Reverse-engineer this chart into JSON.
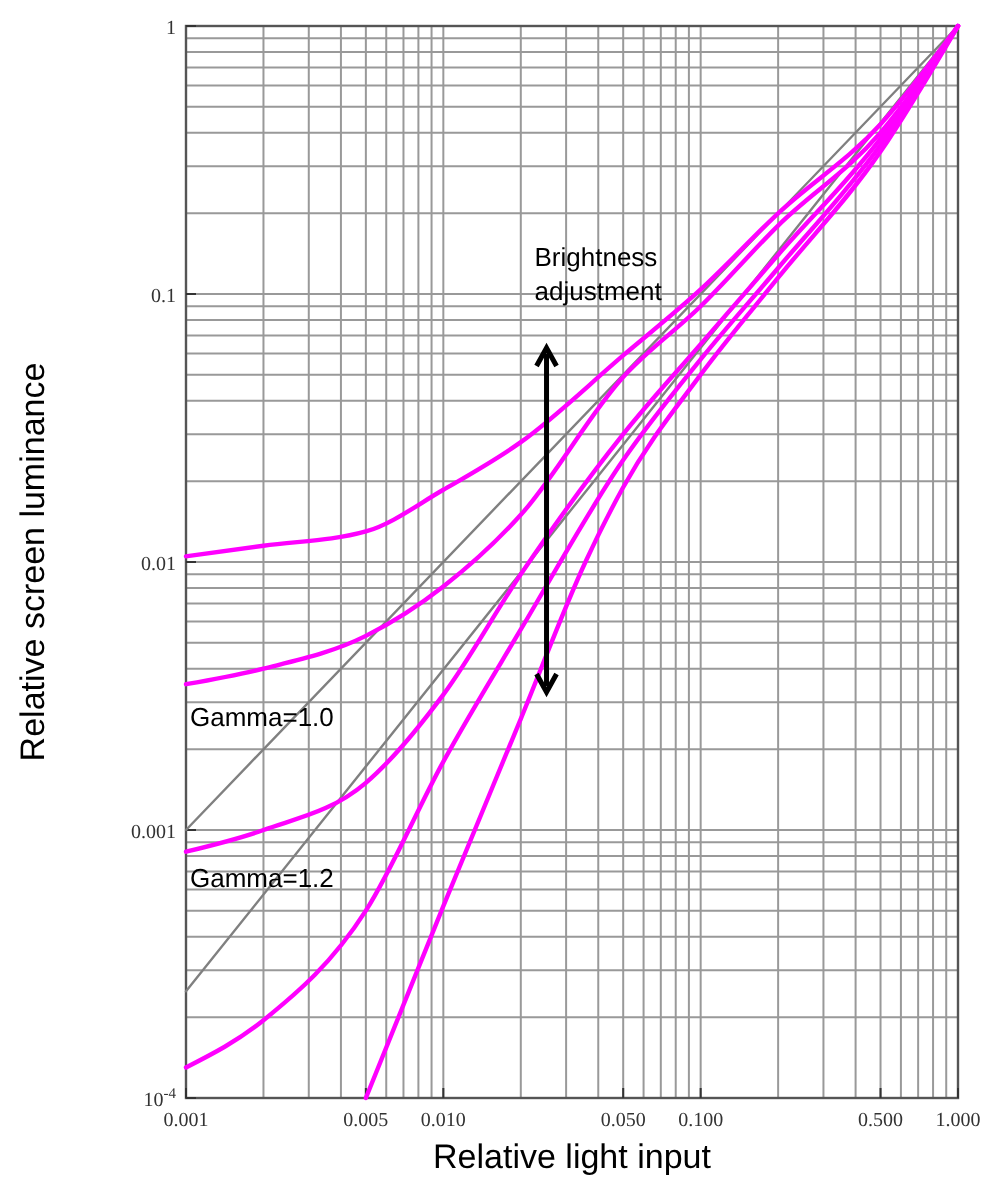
{
  "chart_data": {
    "type": "line",
    "xlabel": "Relative light input",
    "ylabel": "Relative screen luminance",
    "log": "xy",
    "grid": true,
    "xlim": [
      0.001,
      1
    ],
    "ylim": [
      0.0001,
      1
    ],
    "xticks": [
      0.001,
      0.005,
      {
        "value": 0.01,
        "label": "0.010"
      },
      {
        "value": 0.05,
        "label": "0.050"
      },
      {
        "value": 0.1,
        "label": "0.100"
      },
      {
        "value": 0.5,
        "label": "0.500"
      },
      {
        "value": 1,
        "label": "1.000"
      }
    ],
    "yticks": [
      {
        "value": 0.0001,
        "label": "10$^{-4}$"
      },
      0.001,
      0.01,
      0.1,
      1
    ],
    "x": [
      0.001,
      0.002,
      0.005,
      0.01,
      0.02,
      0.05,
      0.1,
      0.2,
      0.5,
      1
    ],
    "series": [
      {
        "name": "Gamma=1.0",
        "color": "#808080",
        "x": [
          0.001,
          1
        ],
        "values": [
          0.001,
          1
        ]
      },
      {
        "name": "Gamma=1.2",
        "color": "#808080",
        "x": [
          0.001,
          1
        ],
        "values": [
          0.00025,
          1
        ]
      },
      {
        "color": "#ff00ff",
        "values": [
          0.0105,
          0.0115,
          0.013,
          0.0186,
          0.028,
          0.059,
          0.104,
          0.2,
          0.43,
          1
        ]
      },
      {
        "color": "#ff00ff",
        "values": [
          0.0035,
          0.004,
          0.0053,
          0.0081,
          0.015,
          0.049,
          0.09,
          0.18,
          0.4,
          1
        ]
      },
      {
        "color": "#ff00ff",
        "values": [
          0.00083,
          0.001,
          0.0015,
          0.0032,
          0.009,
          0.03,
          0.065,
          0.14,
          0.38,
          1
        ]
      },
      {
        "color": "#ff00ff",
        "values": [
          0.00013,
          0.000195,
          0.0005,
          0.0018,
          0.0056,
          0.024,
          0.057,
          0.125,
          0.36,
          1
        ]
      },
      {
        "color": "#ff00ff",
        "x": [
          0.005,
          0.01,
          0.02,
          0.036,
          0.05,
          0.1,
          0.2,
          0.5,
          1
        ],
        "values": [
          0.0001,
          0.00052,
          0.0026,
          0.0102,
          0.019,
          0.05,
          0.115,
          0.34,
          1
        ]
      }
    ],
    "annotations": [
      "Brightness adjustment"
    ]
  }
}
